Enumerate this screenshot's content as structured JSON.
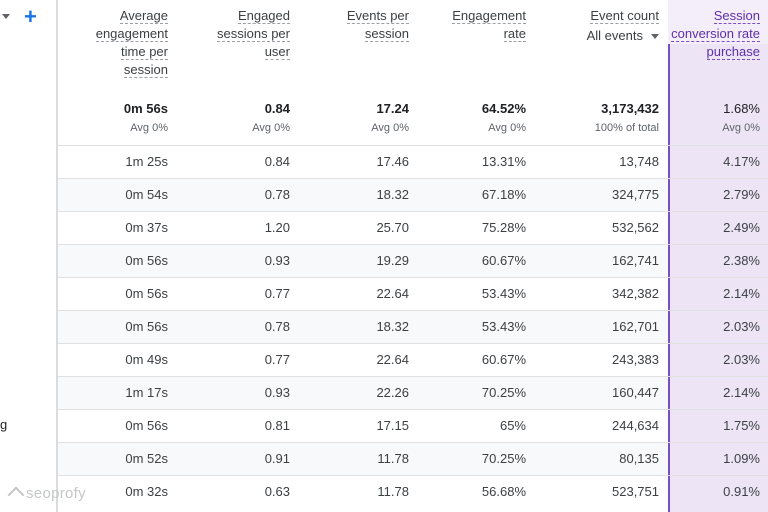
{
  "toolbar": {
    "add_icon": "plus-icon",
    "dropdown_icon": "chevron-down-icon"
  },
  "colors": {
    "accent": "#1a73e8",
    "highlight": "#ede5f6",
    "highlight_border": "#7b4fc4"
  },
  "columns": [
    {
      "key": "avg_time",
      "label_lines": [
        "Average",
        "engagement",
        "time per",
        "session"
      ]
    },
    {
      "key": "engaged_per_user",
      "label_lines": [
        "Engaged",
        "sessions per",
        "user"
      ]
    },
    {
      "key": "events_per_session",
      "label_lines": [
        "Events per",
        "session"
      ]
    },
    {
      "key": "engagement_rate",
      "label_lines": [
        "Engagement",
        "rate"
      ]
    },
    {
      "key": "event_count",
      "label_lines": [
        "Event count"
      ],
      "selector": "All events"
    },
    {
      "key": "conversion_rate",
      "label_lines": [
        "Session",
        "conversion rate",
        "purchase"
      ]
    }
  ],
  "totals": {
    "values": [
      "0m 56s",
      "0.84",
      "17.24",
      "64.52%",
      "3,173,432",
      "1.68%"
    ],
    "notes": [
      "Avg 0%",
      "Avg 0%",
      "Avg 0%",
      "Avg 0%",
      "100% of total",
      "Avg 0%"
    ]
  },
  "row_labels": [
    "",
    "",
    "",
    "",
    "",
    "",
    "",
    "",
    "g",
    "",
    ""
  ],
  "rows": [
    [
      "1m 25s",
      "0.84",
      "17.46",
      "13.31%",
      "13,748",
      "4.17%"
    ],
    [
      "0m 54s",
      "0.78",
      "18.32",
      "67.18%",
      "324,775",
      "2.79%"
    ],
    [
      "0m 37s",
      "1.20",
      "25.70",
      "75.28%",
      "532,562",
      "2.49%"
    ],
    [
      "0m 56s",
      "0.93",
      "19.29",
      "60.67%",
      "162,741",
      "2.38%"
    ],
    [
      "0m 56s",
      "0.77",
      "22.64",
      "53.43%",
      "342,382",
      "2.14%"
    ],
    [
      "0m 56s",
      "0.78",
      "18.32",
      "53.43%",
      "162,701",
      "2.03%"
    ],
    [
      "0m 49s",
      "0.77",
      "22.64",
      "60.67%",
      "243,383",
      "2.03%"
    ],
    [
      "1m 17s",
      "0.93",
      "22.26",
      "70.25%",
      "160,447",
      "2.14%"
    ],
    [
      "0m 56s",
      "0.81",
      "17.15",
      "65%",
      "244,634",
      "1.75%"
    ],
    [
      "0m 52s",
      "0.91",
      "11.78",
      "70.25%",
      "80,135",
      "1.09%"
    ],
    [
      "0m 32s",
      "0.63",
      "11.78",
      "56.68%",
      "523,751",
      "0.91%"
    ]
  ],
  "watermark": "seoprofy"
}
